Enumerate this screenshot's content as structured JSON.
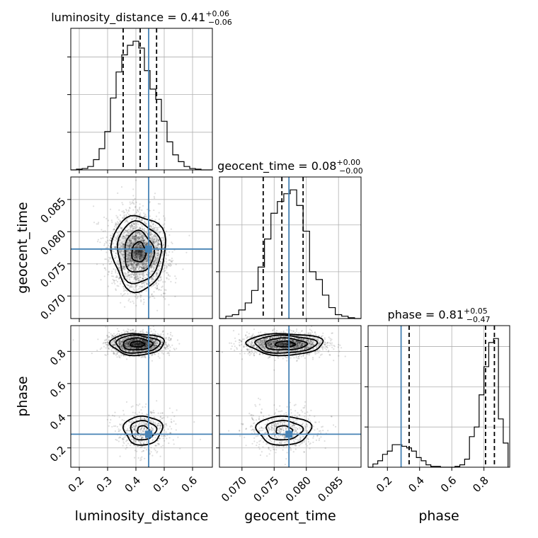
{
  "chart_data": {
    "type": "corner",
    "grid": true,
    "truth_color": "#4682b4",
    "hist_color": "#000000",
    "params": [
      {
        "name": "luminosity_distance",
        "label": "luminosity_distance",
        "range": [
          0.17,
          0.67
        ],
        "ticks": [
          0.2,
          0.3,
          0.4,
          0.5,
          0.6
        ],
        "tick_labels": [
          "0.2",
          "0.3",
          "0.4",
          "0.5",
          "0.6"
        ],
        "truth": 0.445,
        "title": {
          "name": "luminosity_distance",
          "median": "0.41",
          "plus": "+0.06",
          "minus": "−0.06"
        },
        "quantiles": [
          0.355,
          0.415,
          0.473
        ],
        "hist": {
          "edges": [
            0.17,
            0.19,
            0.21,
            0.23,
            0.25,
            0.27,
            0.29,
            0.31,
            0.33,
            0.35,
            0.37,
            0.39,
            0.41,
            0.43,
            0.45,
            0.47,
            0.49,
            0.51,
            0.53,
            0.55,
            0.57,
            0.59,
            0.61,
            0.63,
            0.65,
            0.67
          ],
          "counts": [
            0,
            1,
            2,
            5,
            15,
            31,
            56,
            105,
            143,
            168,
            182,
            188,
            178,
            145,
            118,
            103,
            71,
            41,
            22,
            12,
            5,
            2,
            1,
            0,
            0
          ]
        }
      },
      {
        "name": "geocent_time",
        "label": "geocent_time",
        "range": [
          0.0665,
          0.0885
        ],
        "ticks": [
          0.07,
          0.075,
          0.08,
          0.085
        ],
        "tick_labels": [
          "0.070",
          "0.075",
          "0.080",
          "0.085"
        ],
        "truth": 0.0773,
        "title": {
          "name": "geocent_time",
          "median": "0.08",
          "plus": "+0.00",
          "minus": "−0.00"
        },
        "quantiles": [
          0.0733,
          0.0762,
          0.0795
        ],
        "hist": {
          "edges": [
            0.0665,
            0.0675,
            0.0685,
            0.0695,
            0.0705,
            0.0715,
            0.0725,
            0.0735,
            0.0745,
            0.0755,
            0.0765,
            0.0775,
            0.0785,
            0.0795,
            0.0805,
            0.0815,
            0.0825,
            0.0835,
            0.0845,
            0.0855,
            0.0865,
            0.0875,
            0.0885
          ],
          "counts": [
            0,
            3,
            5,
            11,
            20,
            36,
            66,
            102,
            135,
            150,
            160,
            165,
            145,
            112,
            60,
            50,
            30,
            14,
            5,
            3,
            1,
            0
          ]
        }
      },
      {
        "name": "phase",
        "label": "phase",
        "range": [
          0.08,
          0.96
        ],
        "ticks": [
          0.2,
          0.4,
          0.6,
          0.8
        ],
        "tick_labels": [
          "0.2",
          "0.4",
          "0.6",
          "0.8"
        ],
        "truth": 0.285,
        "title": {
          "name": "phase",
          "median": "0.81",
          "plus": "+0.05",
          "minus": "−0.47"
        },
        "quantiles": [
          0.335,
          0.81,
          0.865
        ],
        "hist": {
          "edges": [
            0.08,
            0.11,
            0.14,
            0.17,
            0.2,
            0.23,
            0.26,
            0.29,
            0.32,
            0.35,
            0.38,
            0.41,
            0.44,
            0.47,
            0.5,
            0.53,
            0.56,
            0.59,
            0.62,
            0.65,
            0.68,
            0.71,
            0.74,
            0.77,
            0.8,
            0.83,
            0.86,
            0.89,
            0.92,
            0.95
          ],
          "counts": [
            0,
            4,
            8,
            16,
            20,
            28,
            28,
            26,
            24,
            20,
            12,
            8,
            3,
            1,
            1,
            0,
            0,
            0,
            1,
            3,
            10,
            38,
            50,
            90,
            125,
            155,
            160,
            60,
            30
          ]
        }
      }
    ],
    "pairs": [
      {
        "row": 1,
        "col": 0,
        "centers": [
          {
            "x": 0.41,
            "y": 0.0768,
            "sx": 0.045,
            "sy": 0.0028,
            "rho": -0.1,
            "w": 1
          }
        ]
      },
      {
        "row": 2,
        "col": 0,
        "centers": [
          {
            "x": 0.405,
            "y": 0.845,
            "sx": 0.045,
            "sy": 0.032,
            "rho": 0.0,
            "w": 0.78
          },
          {
            "x": 0.425,
            "y": 0.31,
            "sx": 0.045,
            "sy": 0.06,
            "rho": 0.0,
            "w": 0.22
          }
        ]
      },
      {
        "row": 2,
        "col": 1,
        "centers": [
          {
            "x": 0.0767,
            "y": 0.845,
            "sx": 0.0028,
            "sy": 0.032,
            "rho": 0.0,
            "w": 0.78
          },
          {
            "x": 0.0765,
            "y": 0.31,
            "sx": 0.0028,
            "sy": 0.06,
            "rho": 0.0,
            "w": 0.22
          }
        ]
      }
    ]
  }
}
